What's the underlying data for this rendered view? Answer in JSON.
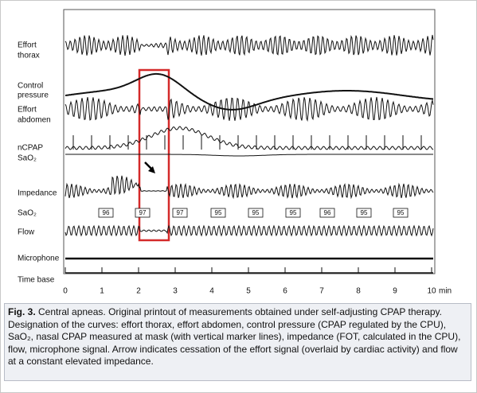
{
  "channels": [
    [
      "Effort",
      "thorax"
    ],
    [
      "Control",
      "pressure"
    ],
    [
      "Effort",
      "abdomen"
    ],
    [
      "nCPAP",
      "SaO₂"
    ],
    [
      "Impedance"
    ],
    [
      "SaO₂"
    ],
    [
      "Flow"
    ],
    [
      "Microphone"
    ],
    [
      "Time base"
    ]
  ],
  "sao2_readings": [
    96,
    97,
    97,
    95,
    95,
    95,
    96,
    95,
    95
  ],
  "time_axis": {
    "ticks": [
      0,
      1,
      2,
      3,
      4,
      5,
      6,
      7,
      8,
      9,
      10
    ],
    "unit": "min"
  },
  "caption": {
    "label": "Fig. 3.",
    "text": "Central apneas. Original printout of measurements obtained under self-adjusting CPAP therapy. Designation of the curves: effort thorax, effort abdomen, control pressure (CPAP regulated by the CPU), SaO₂, nasal CPAP measured at mask (with vertical marker lines), impedance (FOT, calculated in the CPU), flow, microphone signal. Arrow indicates cessation of the effort signal (overlaid by cardiac activity) and flow at a constant elevated impedance."
  }
}
